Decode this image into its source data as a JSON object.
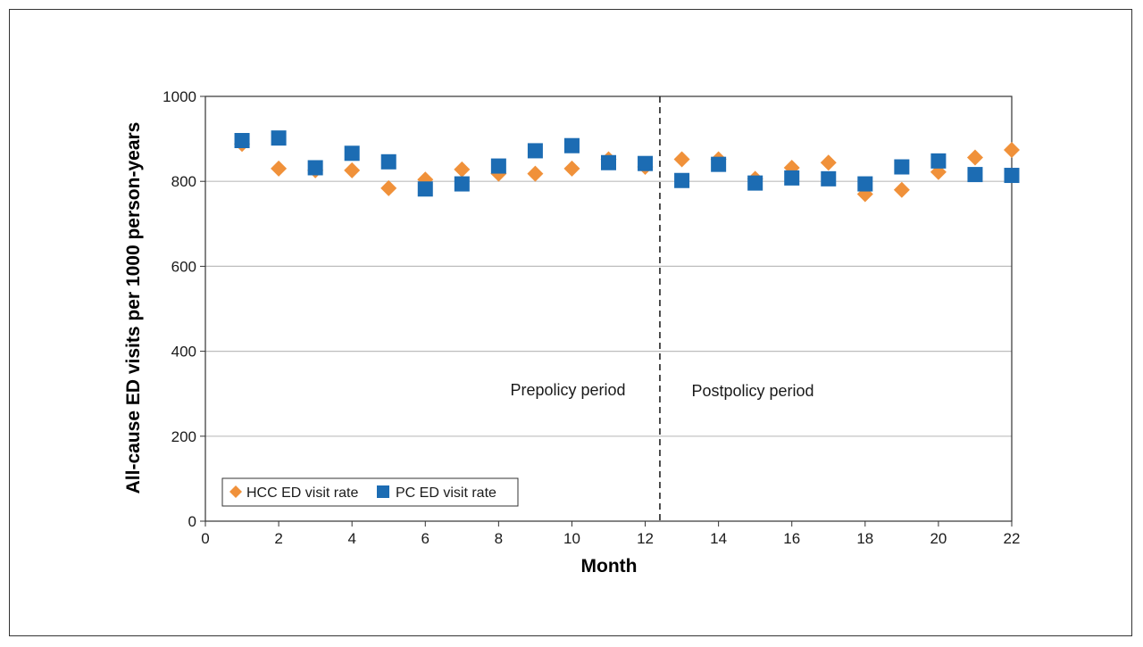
{
  "chart_data": {
    "type": "scatter",
    "xlabel": "Month",
    "ylabel": "All-cause ED visits per 1000 person-years",
    "xlim": [
      0,
      22
    ],
    "ylim": [
      0,
      1000
    ],
    "x_ticks": [
      0,
      2,
      4,
      6,
      8,
      10,
      12,
      14,
      16,
      18,
      20,
      22
    ],
    "y_ticks": [
      0,
      200,
      400,
      600,
      800,
      1000
    ],
    "grid": "horizontal",
    "policy_line_x": 12.4,
    "annotations": [
      "Prepolicy period",
      "Postpolicy period"
    ],
    "legend_position": "bottom-left",
    "series": [
      {
        "name": "HCC ED visit rate",
        "marker": "diamond",
        "color": "#f0913a",
        "x": [
          1,
          2,
          3,
          4,
          5,
          6,
          7,
          8,
          9,
          10,
          11,
          12,
          13,
          14,
          15,
          16,
          17,
          18,
          19,
          20,
          21,
          22
        ],
        "values": [
          888,
          830,
          826,
          826,
          784,
          804,
          828,
          818,
          818,
          830,
          852,
          834,
          852,
          852,
          806,
          832,
          844,
          770,
          780,
          822,
          856,
          874
        ]
      },
      {
        "name": "PC ED visit rate",
        "marker": "square",
        "color": "#1c6cb3",
        "x": [
          1,
          2,
          3,
          4,
          5,
          6,
          7,
          8,
          9,
          10,
          11,
          12,
          13,
          14,
          15,
          16,
          17,
          18,
          19,
          20,
          21,
          22
        ],
        "values": [
          896,
          902,
          832,
          866,
          846,
          782,
          794,
          836,
          872,
          884,
          844,
          842,
          802,
          840,
          796,
          808,
          806,
          794,
          834,
          848,
          816,
          814
        ]
      }
    ]
  }
}
